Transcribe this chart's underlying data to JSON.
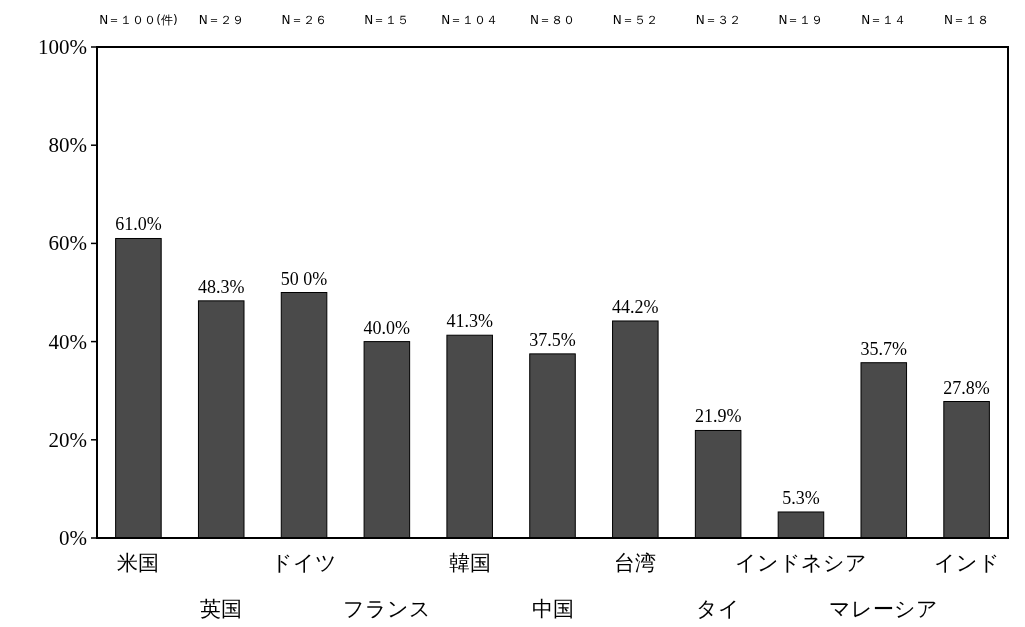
{
  "chart_data": {
    "type": "bar",
    "categories": [
      "米国",
      "英国",
      "ドイツ",
      "フランス",
      "韓国",
      "中国",
      "台湾",
      "タイ",
      "インドネシア",
      "マレーシア",
      "インド"
    ],
    "values": [
      61.0,
      48.3,
      50.0,
      40.0,
      41.3,
      37.5,
      44.2,
      21.9,
      5.3,
      35.7,
      27.8
    ],
    "color": "#4a4a4a",
    "value_labels": [
      "61.0%",
      "48.3%",
      "50 0%",
      "40.0%",
      "41.3%",
      "37.5%",
      "44.2%",
      "21.9%",
      "5.3%",
      "35.7%",
      "27.8%"
    ],
    "ylim": [
      0,
      100
    ],
    "yticks": [
      {
        "value": 0,
        "label": "0%"
      },
      {
        "value": 20,
        "label": "20%"
      },
      {
        "value": 40,
        "label": "40%"
      },
      {
        "value": 60,
        "label": "60%"
      },
      {
        "value": 80,
        "label": "80%"
      },
      {
        "value": 100,
        "label": "100%"
      }
    ],
    "annotations": [
      "N＝１００(件)",
      "N＝２９",
      "N＝２６",
      "N＝１５",
      "N＝１０４",
      "N＝８０",
      "N＝５２",
      "N＝３２",
      "N＝１９",
      "N＝１４",
      "N＝１８"
    ],
    "grid": false
  }
}
